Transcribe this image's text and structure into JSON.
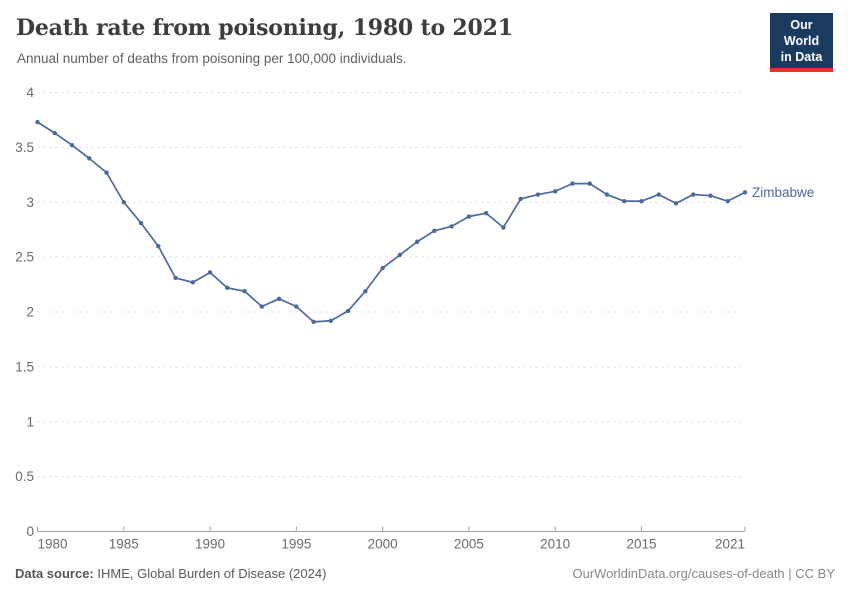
{
  "header": {
    "title": "Death rate from poisoning, 1980 to 2021",
    "subtitle": "Annual number of deaths from poisoning per 100,000 individuals.",
    "logo": {
      "line1": "Our World",
      "line2": "in Data",
      "bg_color": "#1b3a60",
      "accent_color": "#e5332d"
    }
  },
  "chart_data": {
    "type": "line",
    "title": "Death rate from poisoning, 1980 to 2021",
    "xlabel": "",
    "ylabel": "",
    "grid": "horizontal-dashed",
    "legend_position": "end-of-line-label",
    "ylim": [
      0,
      4
    ],
    "yticks": [
      0,
      0.5,
      1,
      1.5,
      2,
      2.5,
      3,
      3.5,
      4
    ],
    "xticks": [
      1980,
      1985,
      1990,
      1995,
      2000,
      2005,
      2010,
      2015,
      2021
    ],
    "x": [
      1980,
      1981,
      1982,
      1983,
      1984,
      1985,
      1986,
      1987,
      1988,
      1989,
      1990,
      1991,
      1992,
      1993,
      1994,
      1995,
      1996,
      1997,
      1998,
      1999,
      2000,
      2001,
      2002,
      2003,
      2004,
      2005,
      2006,
      2007,
      2008,
      2009,
      2010,
      2011,
      2012,
      2013,
      2014,
      2015,
      2016,
      2017,
      2018,
      2019,
      2020,
      2021
    ],
    "series": [
      {
        "name": "Zimbabwe",
        "color": "#4c6a9c",
        "values": [
          3.73,
          3.63,
          3.52,
          3.4,
          3.27,
          3.0,
          2.81,
          2.6,
          2.31,
          2.27,
          2.36,
          2.22,
          2.19,
          2.05,
          2.12,
          2.05,
          1.91,
          1.92,
          2.01,
          2.19,
          2.4,
          2.52,
          2.64,
          2.74,
          2.78,
          2.87,
          2.9,
          2.77,
          3.03,
          3.07,
          3.1,
          3.17,
          3.17,
          3.07,
          3.01,
          3.01,
          3.07,
          2.99,
          3.07,
          3.06,
          3.01,
          3.09
        ]
      }
    ]
  },
  "footer": {
    "source_label": "Data source:",
    "source_text": " IHME, Global Burden of Disease (2024)",
    "link_text": "OurWorldinData.org/causes-of-death | CC BY"
  }
}
